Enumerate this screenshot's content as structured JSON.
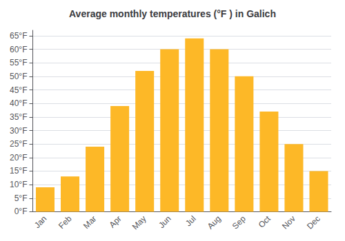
{
  "chart_data": {
    "type": "bar",
    "title": "Average monthly temperatures (°F ) in Galich",
    "categories": [
      "Jan",
      "Feb",
      "Mar",
      "Apr",
      "May",
      "Jun",
      "Jul",
      "Aug",
      "Sep",
      "Oct",
      "Nov",
      "Dec"
    ],
    "values": [
      9,
      13,
      24,
      39,
      52,
      60,
      64,
      60,
      50,
      37,
      25,
      15
    ],
    "color": "#FDB827",
    "ylim": [
      0,
      67
    ],
    "yticks": [
      {
        "value": 0,
        "label": "0°F"
      },
      {
        "value": 5,
        "label": "5°F"
      },
      {
        "value": 10,
        "label": "10°F"
      },
      {
        "value": 15,
        "label": "15°F"
      },
      {
        "value": 20,
        "label": "20°F"
      },
      {
        "value": 25,
        "label": "25°F"
      },
      {
        "value": 30,
        "label": "30°F"
      },
      {
        "value": 35,
        "label": "35°F"
      },
      {
        "value": 40,
        "label": "40°F"
      },
      {
        "value": 45,
        "label": "45°F"
      },
      {
        "value": 50,
        "label": "50°F"
      },
      {
        "value": 55,
        "label": "55°F"
      },
      {
        "value": 60,
        "label": "60°F"
      },
      {
        "value": 65,
        "label": "65°F"
      }
    ],
    "grid": true
  }
}
